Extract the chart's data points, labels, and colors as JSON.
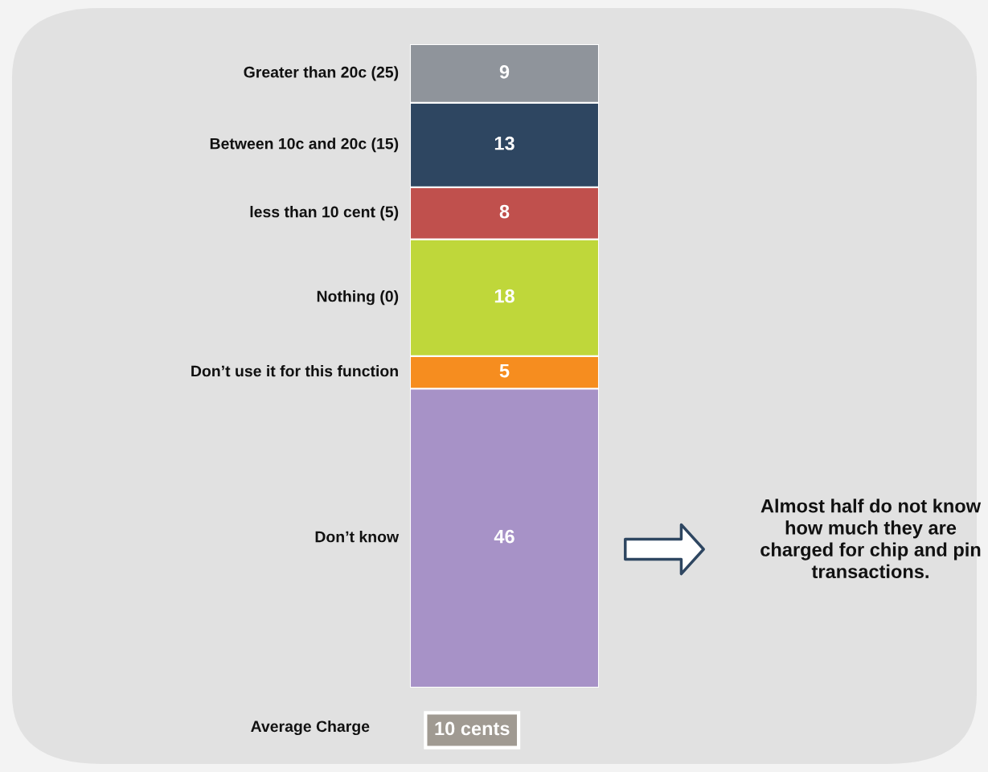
{
  "chart_data": {
    "type": "bar",
    "stacked": true,
    "categories": [
      null
    ],
    "data_labels": true,
    "legend": false,
    "series": [
      {
        "name": "Don’t know",
        "color": "#a792c7",
        "values": [
          46
        ]
      },
      {
        "name": "Don’t use it for this function",
        "color": "#f68d1f",
        "values": [
          5
        ]
      },
      {
        "name": "Nothing (0)",
        "color": "#bfd73a",
        "values": [
          18
        ]
      },
      {
        "name": "less than 10 cent (5)",
        "color": "#c0504d",
        "values": [
          8
        ]
      },
      {
        "name": "Between 10c and 20c (15)",
        "color": "#2e4661",
        "values": [
          13
        ]
      },
      {
        "name": "Greater than 20c (25)",
        "color": "#8f949b",
        "values": [
          9
        ]
      }
    ],
    "annotations": [
      "Average Charge",
      "10 cents",
      "Almost half do not know how much they are charged for chip and pin transactions."
    ]
  }
}
